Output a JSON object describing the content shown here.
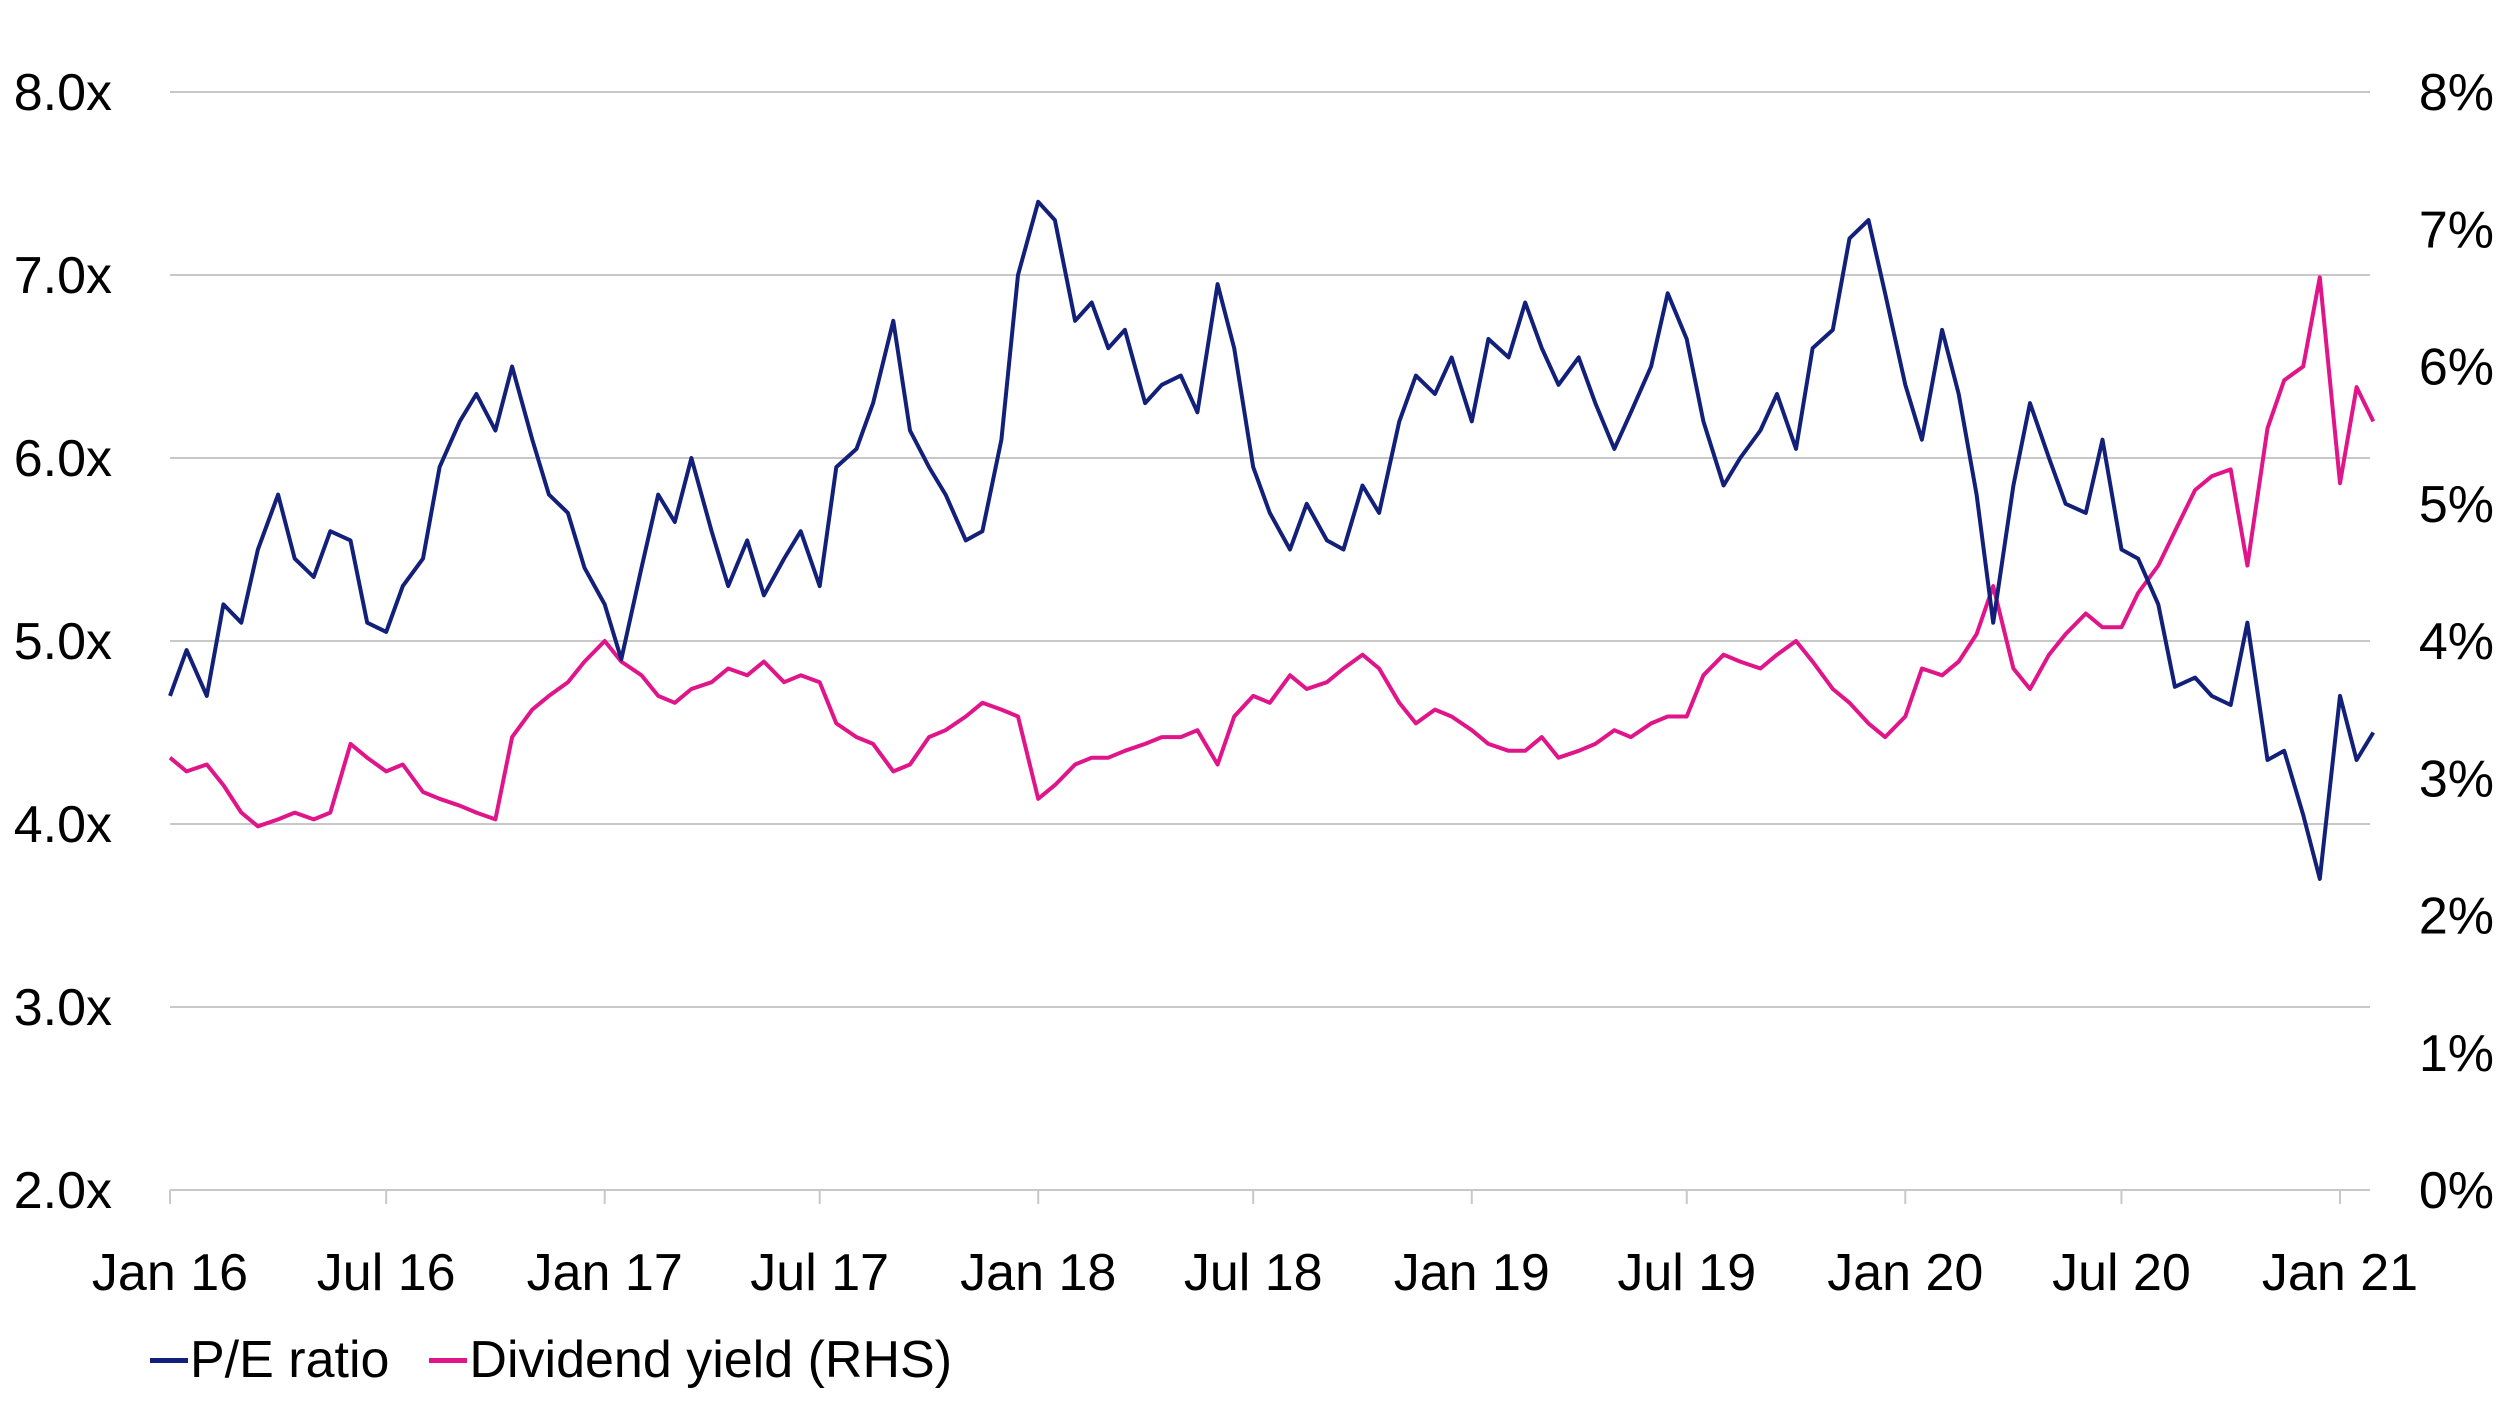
{
  "chart_data": {
    "type": "line",
    "x_ticks": [
      "Jan 16",
      "Jul 16",
      "Jan 17",
      "Jul 17",
      "Jan 18",
      "Jul 18",
      "Jan 19",
      "Jul 19",
      "Jan 20",
      "Jul 20",
      "Jan 21"
    ],
    "y_left": {
      "ticks": [
        "2.0x",
        "3.0x",
        "4.0x",
        "5.0x",
        "6.0x",
        "7.0x",
        "8.0x"
      ],
      "min": 2.0,
      "max": 8.0
    },
    "y_right": {
      "ticks": [
        "0%",
        "1%",
        "2%",
        "3%",
        "4%",
        "5%",
        "6%",
        "7%",
        "8%"
      ],
      "min": 0,
      "max": 8
    },
    "grid": true,
    "legend_position": "bottom-left",
    "series": [
      {
        "name": "P/E ratio",
        "axis": "left",
        "color": "#13207A",
        "points": [
          [
            "2016-01-01",
            4.7
          ],
          [
            "2016-01-15",
            4.95
          ],
          [
            "2016-02-01",
            4.7
          ],
          [
            "2016-02-15",
            5.2
          ],
          [
            "2016-03-01",
            5.1
          ],
          [
            "2016-03-15",
            5.5
          ],
          [
            "2016-04-01",
            5.8
          ],
          [
            "2016-04-15",
            5.45
          ],
          [
            "2016-05-01",
            5.35
          ],
          [
            "2016-05-15",
            5.6
          ],
          [
            "2016-06-01",
            5.55
          ],
          [
            "2016-06-15",
            5.1
          ],
          [
            "2016-07-01",
            5.05
          ],
          [
            "2016-07-15",
            5.3
          ],
          [
            "2016-08-01",
            5.45
          ],
          [
            "2016-08-15",
            5.95
          ],
          [
            "2016-09-01",
            6.2
          ],
          [
            "2016-09-15",
            6.35
          ],
          [
            "2016-10-01",
            6.15
          ],
          [
            "2016-10-15",
            6.5
          ],
          [
            "2016-11-01",
            6.1
          ],
          [
            "2016-11-15",
            5.8
          ],
          [
            "2016-12-01",
            5.7
          ],
          [
            "2016-12-15",
            5.4
          ],
          [
            "2017-01-01",
            5.2
          ],
          [
            "2017-01-15",
            4.9
          ],
          [
            "2017-02-01",
            5.4
          ],
          [
            "2017-02-15",
            5.8
          ],
          [
            "2017-03-01",
            5.65
          ],
          [
            "2017-03-15",
            6.0
          ],
          [
            "2017-04-01",
            5.6
          ],
          [
            "2017-04-15",
            5.3
          ],
          [
            "2017-05-01",
            5.55
          ],
          [
            "2017-05-15",
            5.25
          ],
          [
            "2017-06-01",
            5.45
          ],
          [
            "2017-06-15",
            5.6
          ],
          [
            "2017-07-01",
            5.3
          ],
          [
            "2017-07-15",
            5.95
          ],
          [
            "2017-08-01",
            6.05
          ],
          [
            "2017-08-15",
            6.3
          ],
          [
            "2017-09-01",
            6.75
          ],
          [
            "2017-09-15",
            6.15
          ],
          [
            "2017-10-01",
            5.95
          ],
          [
            "2017-10-15",
            5.8
          ],
          [
            "2017-11-01",
            5.55
          ],
          [
            "2017-11-15",
            5.6
          ],
          [
            "2017-12-01",
            6.1
          ],
          [
            "2017-12-15",
            7.0
          ],
          [
            "2018-01-01",
            7.4
          ],
          [
            "2018-01-15",
            7.3
          ],
          [
            "2018-02-01",
            6.75
          ],
          [
            "2018-02-15",
            6.85
          ],
          [
            "2018-03-01",
            6.6
          ],
          [
            "2018-03-15",
            6.7
          ],
          [
            "2018-04-01",
            6.3
          ],
          [
            "2018-04-15",
            6.4
          ],
          [
            "2018-05-01",
            6.45
          ],
          [
            "2018-05-15",
            6.25
          ],
          [
            "2018-06-01",
            6.95
          ],
          [
            "2018-06-15",
            6.6
          ],
          [
            "2018-07-01",
            5.95
          ],
          [
            "2018-07-15",
            5.7
          ],
          [
            "2018-08-01",
            5.5
          ],
          [
            "2018-08-15",
            5.75
          ],
          [
            "2018-09-01",
            5.55
          ],
          [
            "2018-09-15",
            5.5
          ],
          [
            "2018-10-01",
            5.85
          ],
          [
            "2018-10-15",
            5.7
          ],
          [
            "2018-11-01",
            6.2
          ],
          [
            "2018-11-15",
            6.45
          ],
          [
            "2018-12-01",
            6.35
          ],
          [
            "2018-12-15",
            6.55
          ],
          [
            "2019-01-01",
            6.2
          ],
          [
            "2019-01-15",
            6.65
          ],
          [
            "2019-02-01",
            6.55
          ],
          [
            "2019-02-15",
            6.85
          ],
          [
            "2019-03-01",
            6.6
          ],
          [
            "2019-03-15",
            6.4
          ],
          [
            "2019-04-01",
            6.55
          ],
          [
            "2019-04-15",
            6.3
          ],
          [
            "2019-05-01",
            6.05
          ],
          [
            "2019-05-15",
            6.25
          ],
          [
            "2019-06-01",
            6.5
          ],
          [
            "2019-06-15",
            6.9
          ],
          [
            "2019-07-01",
            6.65
          ],
          [
            "2019-07-15",
            6.2
          ],
          [
            "2019-08-01",
            5.85
          ],
          [
            "2019-08-15",
            6.0
          ],
          [
            "2019-09-01",
            6.15
          ],
          [
            "2019-09-15",
            6.35
          ],
          [
            "2019-10-01",
            6.05
          ],
          [
            "2019-10-15",
            6.6
          ],
          [
            "2019-11-01",
            6.7
          ],
          [
            "2019-11-15",
            7.2
          ],
          [
            "2019-12-01",
            7.3
          ],
          [
            "2019-12-15",
            6.9
          ],
          [
            "2020-01-01",
            6.4
          ],
          [
            "2020-01-15",
            6.1
          ],
          [
            "2020-02-01",
            6.7
          ],
          [
            "2020-02-15",
            6.35
          ],
          [
            "2020-03-01",
            5.8
          ],
          [
            "2020-03-15",
            5.1
          ],
          [
            "2020-04-01",
            5.85
          ],
          [
            "2020-04-15",
            6.3
          ],
          [
            "2020-05-01",
            6.0
          ],
          [
            "2020-05-15",
            5.75
          ],
          [
            "2020-06-01",
            5.7
          ],
          [
            "2020-06-15",
            6.1
          ],
          [
            "2020-07-01",
            5.5
          ],
          [
            "2020-07-15",
            5.45
          ],
          [
            "2020-08-01",
            5.2
          ],
          [
            "2020-08-15",
            4.75
          ],
          [
            "2020-09-01",
            4.8
          ],
          [
            "2020-09-15",
            4.7
          ],
          [
            "2020-10-01",
            4.65
          ],
          [
            "2020-10-15",
            5.1
          ],
          [
            "2020-11-01",
            4.35
          ],
          [
            "2020-11-15",
            4.4
          ],
          [
            "2020-12-01",
            4.05
          ],
          [
            "2020-12-15",
            3.7
          ],
          [
            "2021-01-01",
            4.7
          ],
          [
            "2021-01-15",
            4.35
          ],
          [
            "2021-01-29",
            4.5
          ]
        ]
      },
      {
        "name": "Dividend yield (RHS)",
        "axis": "right",
        "color": "#E0158A",
        "points": [
          [
            "2016-01-01",
            3.15
          ],
          [
            "2016-01-15",
            3.05
          ],
          [
            "2016-02-01",
            3.1
          ],
          [
            "2016-02-15",
            2.95
          ],
          [
            "2016-03-01",
            2.75
          ],
          [
            "2016-03-15",
            2.65
          ],
          [
            "2016-04-01",
            2.7
          ],
          [
            "2016-04-15",
            2.75
          ],
          [
            "2016-05-01",
            2.7
          ],
          [
            "2016-05-15",
            2.75
          ],
          [
            "2016-06-01",
            3.25
          ],
          [
            "2016-06-15",
            3.15
          ],
          [
            "2016-07-01",
            3.05
          ],
          [
            "2016-07-15",
            3.1
          ],
          [
            "2016-08-01",
            2.9
          ],
          [
            "2016-08-15",
            2.85
          ],
          [
            "2016-09-01",
            2.8
          ],
          [
            "2016-09-15",
            2.75
          ],
          [
            "2016-10-01",
            2.7
          ],
          [
            "2016-10-15",
            3.3
          ],
          [
            "2016-11-01",
            3.5
          ],
          [
            "2016-11-15",
            3.6
          ],
          [
            "2016-12-01",
            3.7
          ],
          [
            "2016-12-15",
            3.85
          ],
          [
            "2017-01-01",
            4.0
          ],
          [
            "2017-01-15",
            3.85
          ],
          [
            "2017-02-01",
            3.75
          ],
          [
            "2017-02-15",
            3.6
          ],
          [
            "2017-03-01",
            3.55
          ],
          [
            "2017-03-15",
            3.65
          ],
          [
            "2017-04-01",
            3.7
          ],
          [
            "2017-04-15",
            3.8
          ],
          [
            "2017-05-01",
            3.75
          ],
          [
            "2017-05-15",
            3.85
          ],
          [
            "2017-06-01",
            3.7
          ],
          [
            "2017-06-15",
            3.75
          ],
          [
            "2017-07-01",
            3.7
          ],
          [
            "2017-07-15",
            3.4
          ],
          [
            "2017-08-01",
            3.3
          ],
          [
            "2017-08-15",
            3.25
          ],
          [
            "2017-09-01",
            3.05
          ],
          [
            "2017-09-15",
            3.1
          ],
          [
            "2017-10-01",
            3.3
          ],
          [
            "2017-10-15",
            3.35
          ],
          [
            "2017-11-01",
            3.45
          ],
          [
            "2017-11-15",
            3.55
          ],
          [
            "2017-12-01",
            3.5
          ],
          [
            "2017-12-15",
            3.45
          ],
          [
            "2018-01-01",
            2.85
          ],
          [
            "2018-01-15",
            2.95
          ],
          [
            "2018-02-01",
            3.1
          ],
          [
            "2018-02-15",
            3.15
          ],
          [
            "2018-03-01",
            3.15
          ],
          [
            "2018-03-15",
            3.2
          ],
          [
            "2018-04-01",
            3.25
          ],
          [
            "2018-04-15",
            3.3
          ],
          [
            "2018-05-01",
            3.3
          ],
          [
            "2018-05-15",
            3.35
          ],
          [
            "2018-06-01",
            3.1
          ],
          [
            "2018-06-15",
            3.45
          ],
          [
            "2018-07-01",
            3.6
          ],
          [
            "2018-07-15",
            3.55
          ],
          [
            "2018-08-01",
            3.75
          ],
          [
            "2018-08-15",
            3.65
          ],
          [
            "2018-09-01",
            3.7
          ],
          [
            "2018-09-15",
            3.8
          ],
          [
            "2018-10-01",
            3.9
          ],
          [
            "2018-10-15",
            3.8
          ],
          [
            "2018-11-01",
            3.55
          ],
          [
            "2018-11-15",
            3.4
          ],
          [
            "2018-12-01",
            3.5
          ],
          [
            "2018-12-15",
            3.45
          ],
          [
            "2019-01-01",
            3.35
          ],
          [
            "2019-01-15",
            3.25
          ],
          [
            "2019-02-01",
            3.2
          ],
          [
            "2019-02-15",
            3.2
          ],
          [
            "2019-03-01",
            3.3
          ],
          [
            "2019-03-15",
            3.15
          ],
          [
            "2019-04-01",
            3.2
          ],
          [
            "2019-04-15",
            3.25
          ],
          [
            "2019-05-01",
            3.35
          ],
          [
            "2019-05-15",
            3.3
          ],
          [
            "2019-06-01",
            3.4
          ],
          [
            "2019-06-15",
            3.45
          ],
          [
            "2019-07-01",
            3.45
          ],
          [
            "2019-07-15",
            3.75
          ],
          [
            "2019-08-01",
            3.9
          ],
          [
            "2019-08-15",
            3.85
          ],
          [
            "2019-09-01",
            3.8
          ],
          [
            "2019-09-15",
            3.9
          ],
          [
            "2019-10-01",
            4.0
          ],
          [
            "2019-10-15",
            3.85
          ],
          [
            "2019-11-01",
            3.65
          ],
          [
            "2019-11-15",
            3.55
          ],
          [
            "2019-12-01",
            3.4
          ],
          [
            "2019-12-15",
            3.3
          ],
          [
            "2020-01-01",
            3.45
          ],
          [
            "2020-01-15",
            3.8
          ],
          [
            "2020-02-01",
            3.75
          ],
          [
            "2020-02-15",
            3.85
          ],
          [
            "2020-03-01",
            4.05
          ],
          [
            "2020-03-15",
            4.4
          ],
          [
            "2020-04-01",
            3.8
          ],
          [
            "2020-04-15",
            3.65
          ],
          [
            "2020-05-01",
            3.9
          ],
          [
            "2020-05-15",
            4.05
          ],
          [
            "2020-06-01",
            4.2
          ],
          [
            "2020-06-15",
            4.1
          ],
          [
            "2020-07-01",
            4.1
          ],
          [
            "2020-07-15",
            4.35
          ],
          [
            "2020-08-01",
            4.55
          ],
          [
            "2020-08-15",
            4.8
          ],
          [
            "2020-09-01",
            5.1
          ],
          [
            "2020-09-15",
            5.2
          ],
          [
            "2020-10-01",
            5.25
          ],
          [
            "2020-10-15",
            4.55
          ],
          [
            "2020-11-01",
            5.55
          ],
          [
            "2020-11-15",
            5.9
          ],
          [
            "2020-12-01",
            6.0
          ],
          [
            "2020-12-15",
            6.65
          ],
          [
            "2021-01-01",
            5.15
          ],
          [
            "2021-01-15",
            5.85
          ],
          [
            "2021-01-29",
            5.6
          ]
        ]
      }
    ]
  }
}
